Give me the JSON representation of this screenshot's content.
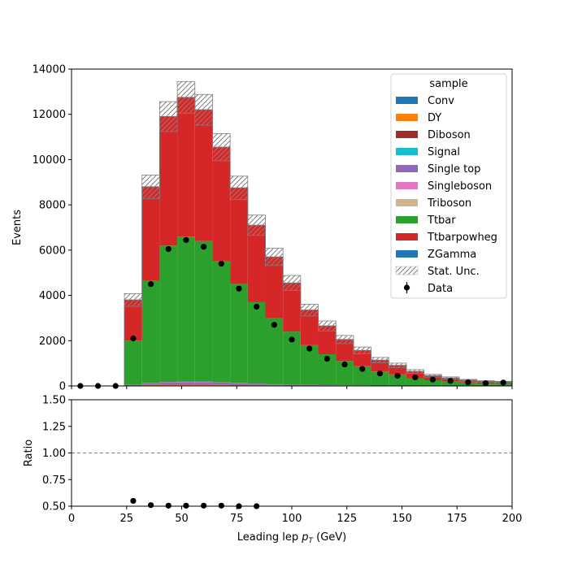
{
  "chart_data": [
    {
      "type": "bar",
      "stacked": true,
      "ylabel": "Events",
      "xlim": [
        0,
        200
      ],
      "ylim": [
        0,
        14000
      ],
      "xticks": [
        0,
        25,
        50,
        75,
        100,
        125,
        150,
        175,
        200
      ],
      "yticks": [
        0,
        2000,
        4000,
        6000,
        8000,
        10000,
        12000,
        14000
      ],
      "legend": {
        "title": "sample",
        "placement": "top-right",
        "entries": [
          "Conv",
          "DY",
          "Diboson",
          "Signal",
          "Single top",
          "Singleboson",
          "Triboson",
          "Ttbar",
          "Ttbarpowheg",
          "ZGamma",
          "Stat. Unc.",
          "Data"
        ]
      },
      "bin_edges": [
        0,
        8,
        16,
        24,
        32,
        40,
        48,
        56,
        64,
        72,
        80,
        88,
        96,
        104,
        112,
        120,
        128,
        136,
        144,
        152,
        160,
        168,
        176,
        184,
        192,
        200
      ],
      "series": [
        {
          "name": "Conv",
          "color": "#1f77b4",
          "values": [
            0,
            0,
            0,
            0,
            0,
            0,
            0,
            0,
            0,
            0,
            0,
            0,
            0,
            0,
            0,
            0,
            0,
            0,
            0,
            0,
            0,
            0,
            0,
            0,
            0
          ]
        },
        {
          "name": "DY",
          "color": "#ff7f0e",
          "values": [
            0,
            0,
            0,
            10,
            30,
            40,
            40,
            40,
            30,
            25,
            20,
            15,
            12,
            10,
            8,
            6,
            5,
            4,
            3,
            3,
            2,
            2,
            1,
            1,
            1
          ]
        },
        {
          "name": "Diboson",
          "color": "#a02c2c",
          "values": [
            0,
            0,
            0,
            5,
            15,
            20,
            20,
            20,
            15,
            12,
            10,
            8,
            6,
            5,
            4,
            3,
            3,
            2,
            2,
            1,
            1,
            1,
            1,
            1,
            0
          ]
        },
        {
          "name": "Signal",
          "color": "#17becf",
          "values": [
            0,
            0,
            0,
            0,
            0,
            0,
            0,
            0,
            0,
            0,
            0,
            0,
            0,
            0,
            0,
            0,
            0,
            0,
            0,
            0,
            0,
            0,
            0,
            0,
            0
          ]
        },
        {
          "name": "Single top",
          "color": "#9467bd",
          "values": [
            0,
            0,
            0,
            25,
            70,
            100,
            110,
            110,
            100,
            80,
            60,
            45,
            35,
            25,
            20,
            15,
            12,
            10,
            8,
            6,
            5,
            4,
            3,
            2,
            2
          ]
        },
        {
          "name": "Singleboson",
          "color": "#e377c2",
          "values": [
            0,
            0,
            0,
            5,
            10,
            15,
            15,
            15,
            12,
            10,
            8,
            6,
            5,
            4,
            3,
            2,
            2,
            2,
            1,
            1,
            1,
            1,
            1,
            0,
            0
          ]
        },
        {
          "name": "Triboson",
          "color": "#d2b48c",
          "values": [
            0,
            0,
            0,
            0,
            0,
            0,
            0,
            0,
            0,
            0,
            0,
            0,
            0,
            0,
            0,
            0,
            0,
            0,
            0,
            0,
            0,
            0,
            0,
            0,
            0
          ]
        },
        {
          "name": "Ttbar",
          "color": "#2ca02c",
          "values": [
            0,
            0,
            0,
            1955,
            4525,
            6025,
            6415,
            6215,
            5343,
            4373,
            3602,
            2926,
            2342,
            1756,
            1365,
            1074,
            848,
            622,
            494,
            329,
            242,
            192,
            144,
            97,
            97
          ]
        },
        {
          "name": "Ttbarpowheg",
          "color": "#d62728",
          "values": [
            0,
            0,
            0,
            1800,
            4150,
            5700,
            6150,
            5800,
            5050,
            4250,
            3400,
            2700,
            2150,
            1550,
            1250,
            950,
            700,
            500,
            400,
            300,
            200,
            150,
            100,
            100,
            80
          ]
        },
        {
          "name": "ZGamma",
          "color": "#1f77b4",
          "values": [
            0,
            0,
            0,
            0,
            0,
            0,
            0,
            0,
            0,
            0,
            0,
            0,
            0,
            0,
            0,
            0,
            0,
            0,
            0,
            0,
            0,
            0,
            0,
            0,
            0
          ]
        }
      ],
      "stat_unc": [
        0,
        0,
        0,
        280,
        520,
        660,
        700,
        680,
        600,
        520,
        450,
        380,
        330,
        260,
        220,
        180,
        150,
        120,
        100,
        80,
        60,
        50,
        40,
        30,
        25
      ],
      "data": {
        "x": [
          4,
          12,
          20,
          28,
          36,
          44,
          52,
          60,
          68,
          76,
          84,
          92,
          100,
          108,
          116,
          124,
          132,
          140,
          148,
          156,
          164,
          172,
          180,
          188,
          196
        ],
        "y": [
          0,
          0,
          0,
          2100,
          4500,
          6050,
          6450,
          6150,
          5400,
          4300,
          3500,
          2700,
          2050,
          1650,
          1200,
          950,
          750,
          550,
          450,
          380,
          280,
          220,
          160,
          120,
          150
        ]
      }
    },
    {
      "type": "scatter",
      "xlabel": "Leading lep",
      "xlabel_var": "p",
      "xlabel_sub": "T",
      "xlabel_unit": "(GeV)",
      "ylabel": "Ratio",
      "xlim": [
        0,
        200
      ],
      "ylim": [
        0.5,
        1.5
      ],
      "xticks": [
        0,
        25,
        50,
        75,
        100,
        125,
        150,
        175,
        200
      ],
      "yticks": [
        0.5,
        0.75,
        1.0,
        1.25,
        1.5
      ],
      "ytick_labels": [
        "0.50",
        "0.75",
        "1.00",
        "1.25",
        "1.50"
      ],
      "reference_line": 1.0,
      "ratio": {
        "x": [
          28,
          36,
          44,
          52,
          60,
          68,
          76,
          84
        ],
        "y": [
          0.55,
          0.51,
          0.505,
          0.505,
          0.505,
          0.505,
          0.5,
          0.5
        ]
      }
    }
  ]
}
